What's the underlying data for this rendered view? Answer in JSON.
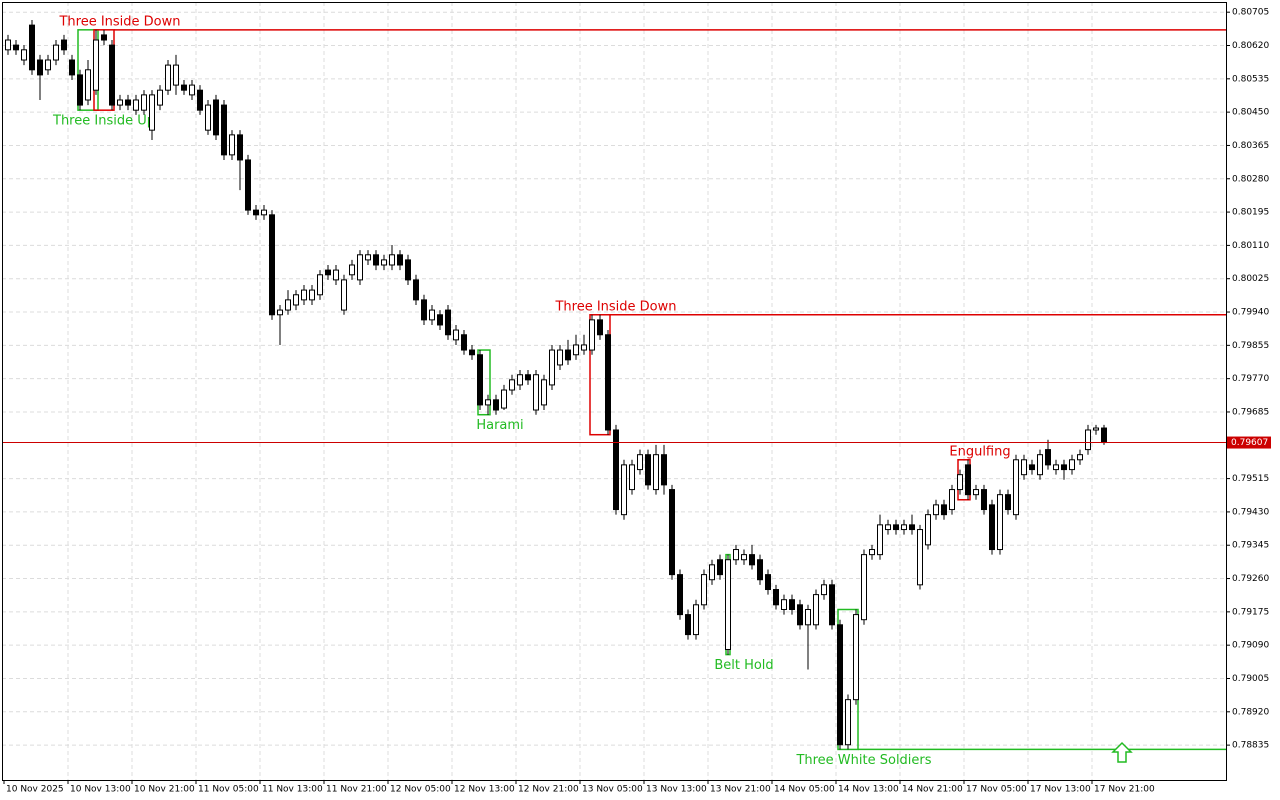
{
  "chart_data": {
    "type": "candlestick",
    "ylim": [
      0.78746,
      0.80731
    ],
    "yticks": [
      0.80705,
      {
        "value": 0.8062,
        "label": "0.80620"
      },
      0.80535,
      {
        "value": 0.8045,
        "label": "0.80450"
      },
      0.80365,
      {
        "value": 0.8028,
        "label": "0.80280"
      },
      0.80195,
      {
        "value": 0.8011,
        "label": "0.80110"
      },
      0.80025,
      {
        "value": 0.7994,
        "label": "0.79940"
      },
      0.79855,
      {
        "value": 0.7977,
        "label": "0.79770"
      },
      0.79685,
      0.79515,
      {
        "value": 0.7943,
        "label": "0.79430"
      },
      0.79345,
      {
        "value": 0.7926,
        "label": "0.79260"
      },
      0.79175,
      {
        "value": 0.7909,
        "label": "0.79090"
      },
      0.79005,
      {
        "value": 0.7892,
        "label": "0.78920"
      },
      0.78835
    ],
    "grid": true,
    "current_price": 0.79607,
    "colors": {
      "bear": "#000000",
      "bull": "#ffffff",
      "bearish_pattern": "#dd0000",
      "bullish_pattern": "#22bb22",
      "current": "#cc0000"
    },
    "categories": [
      "10 Nov 2025",
      null,
      null,
      null,
      null,
      null,
      null,
      null,
      "10 Nov 13:00",
      null,
      null,
      null,
      null,
      null,
      null,
      null,
      "10 Nov 21:00",
      null,
      null,
      null,
      null,
      null,
      null,
      null,
      "11 Nov 05:00",
      null,
      null,
      null,
      null,
      null,
      null,
      null,
      "11 Nov 13:00",
      null,
      null,
      null,
      null,
      null,
      null,
      null,
      "11 Nov 21:00",
      null,
      null,
      null,
      null,
      null,
      null,
      null,
      "12 Nov 05:00",
      null,
      null,
      null,
      null,
      null,
      null,
      null,
      "12 Nov 13:00",
      null,
      null,
      null,
      null,
      null,
      null,
      null,
      "12 Nov 21:00",
      null,
      null,
      null,
      null,
      null,
      null,
      null,
      "13 Nov 05:00",
      null,
      null,
      null,
      null,
      null,
      null,
      null,
      "13 Nov 13:00",
      null,
      null,
      null,
      null,
      null,
      null,
      null,
      "13 Nov 21:00",
      null,
      null,
      null,
      null,
      null,
      null,
      null,
      "14 Nov 05:00",
      null,
      null,
      null,
      null,
      null,
      null,
      null,
      "14 Nov 13:00",
      null,
      null,
      null,
      null,
      null,
      null,
      null,
      "14 Nov 21:00",
      null,
      null,
      null,
      null,
      null,
      null,
      null,
      "17 Nov 05:00",
      null,
      null,
      null,
      null,
      null,
      null,
      null,
      "17 Nov 13:00",
      null,
      null,
      null,
      null,
      null,
      null,
      null,
      "17 Nov 21:00",
      null
    ],
    "candles": [
      [
        0.80609,
        0.80647,
        0.80596,
        0.80634
      ],
      [
        0.80621,
        0.80634,
        0.80596,
        0.80609
      ],
      [
        0.80583,
        0.80621,
        0.8057,
        0.80609
      ],
      [
        0.80672,
        0.80685,
        0.80545,
        0.80558
      ],
      [
        0.80583,
        0.80596,
        0.80481,
        0.80545
      ],
      [
        0.80558,
        0.80596,
        0.80545,
        0.80583
      ],
      [
        0.80583,
        0.80634,
        0.8057,
        0.80621
      ],
      [
        0.80634,
        0.80647,
        0.80596,
        0.80609
      ],
      [
        0.80583,
        0.80596,
        0.80532,
        0.80545
      ],
      [
        0.80545,
        0.80558,
        0.80455,
        0.80468
      ],
      [
        0.80481,
        0.80583,
        0.80468,
        0.80558
      ],
      [
        0.80506,
        0.8066,
        0.80494,
        0.80634
      ],
      [
        0.80647,
        0.8066,
        0.80621,
        0.80634
      ],
      [
        0.80621,
        0.80634,
        0.80455,
        0.80468
      ],
      [
        0.80468,
        0.80494,
        0.80455,
        0.80481
      ],
      [
        0.80481,
        0.80494,
        0.80455,
        0.80468
      ],
      [
        0.80455,
        0.80494,
        0.80443,
        0.80481
      ],
      [
        0.80455,
        0.80506,
        0.80443,
        0.80494
      ],
      [
        0.80404,
        0.80506,
        0.80379,
        0.80494
      ],
      [
        0.80468,
        0.80519,
        0.80455,
        0.80506
      ],
      [
        0.80506,
        0.80583,
        0.80494,
        0.8057
      ],
      [
        0.80519,
        0.80596,
        0.80494,
        0.8057
      ],
      [
        0.80519,
        0.80532,
        0.80494,
        0.80506
      ],
      [
        0.80494,
        0.80532,
        0.80481,
        0.80519
      ],
      [
        0.80506,
        0.80519,
        0.80443,
        0.80455
      ],
      [
        0.80404,
        0.80481,
        0.80392,
        0.80468
      ],
      [
        0.80481,
        0.80494,
        0.80379,
        0.80392
      ],
      [
        0.80468,
        0.80481,
        0.80328,
        0.80341
      ],
      [
        0.80341,
        0.80404,
        0.80328,
        0.80392
      ],
      [
        0.80392,
        0.80404,
        0.80251,
        0.80328
      ],
      [
        0.80328,
        0.80341,
        0.80188,
        0.802
      ],
      [
        0.802,
        0.80213,
        0.80175,
        0.80188
      ],
      [
        0.80188,
        0.80213,
        0.80175,
        0.802
      ],
      [
        0.80188,
        0.802,
        0.7992,
        0.79933
      ],
      [
        0.79933,
        0.79958,
        0.79856,
        0.79945
      ],
      [
        0.79945,
        0.79996,
        0.79933,
        0.79971
      ],
      [
        0.79958,
        0.79996,
        0.79945,
        0.79984
      ],
      [
        0.79971,
        0.80009,
        0.79958,
        0.79996
      ],
      [
        0.79971,
        0.80009,
        0.79958,
        0.79996
      ],
      [
        0.79984,
        0.80047,
        0.79971,
        0.80035
      ],
      [
        0.80047,
        0.8006,
        0.80022,
        0.80035
      ],
      [
        0.80022,
        0.8006,
        0.80009,
        0.80047
      ],
      [
        0.79945,
        0.80035,
        0.79933,
        0.80022
      ],
      [
        0.80035,
        0.80073,
        0.80022,
        0.8006
      ],
      [
        0.80022,
        0.80098,
        0.80009,
        0.80086
      ],
      [
        0.80073,
        0.80098,
        0.8006,
        0.80086
      ],
      [
        0.80086,
        0.80098,
        0.80047,
        0.8006
      ],
      [
        0.8006,
        0.80086,
        0.80047,
        0.80073
      ],
      [
        0.8006,
        0.80111,
        0.80047,
        0.80086
      ],
      [
        0.80086,
        0.80098,
        0.80047,
        0.8006
      ],
      [
        0.80073,
        0.80086,
        0.80009,
        0.80022
      ],
      [
        0.80022,
        0.80035,
        0.79958,
        0.79971
      ],
      [
        0.79971,
        0.79984,
        0.79907,
        0.7992
      ],
      [
        0.7992,
        0.79958,
        0.79907,
        0.79945
      ],
      [
        0.79933,
        0.79945,
        0.79894,
        0.79907
      ],
      [
        0.79945,
        0.79958,
        0.79869,
        0.79882
      ],
      [
        0.79869,
        0.79907,
        0.79856,
        0.79894
      ],
      [
        0.79882,
        0.79894,
        0.79831,
        0.79843
      ],
      [
        0.79843,
        0.79856,
        0.79818,
        0.79831
      ],
      [
        0.79831,
        0.79843,
        0.7969,
        0.79703
      ],
      [
        0.79703,
        0.79729,
        0.79678,
        0.79716
      ],
      [
        0.79716,
        0.79729,
        0.79678,
        0.7969
      ],
      [
        0.79695,
        0.79754,
        0.7969,
        0.79741
      ],
      [
        0.79741,
        0.7978,
        0.79729,
        0.79767
      ],
      [
        0.79754,
        0.79792,
        0.79741,
        0.7978
      ],
      [
        0.7978,
        0.79792,
        0.79754,
        0.79767
      ],
      [
        0.7969,
        0.79792,
        0.79678,
        0.7978
      ],
      [
        0.79703,
        0.7978,
        0.7969,
        0.79767
      ],
      [
        0.79754,
        0.79856,
        0.79741,
        0.79843
      ],
      [
        0.79805,
        0.79856,
        0.79792,
        0.79843
      ],
      [
        0.79843,
        0.79869,
        0.79805,
        0.79818
      ],
      [
        0.79831,
        0.79882,
        0.79818,
        0.79856
      ],
      [
        0.79843,
        0.79882,
        0.79831,
        0.79856
      ],
      [
        0.79843,
        0.79933,
        0.79831,
        0.7992
      ],
      [
        0.7992,
        0.79933,
        0.79869,
        0.79882
      ],
      [
        0.79882,
        0.79894,
        0.79627,
        0.79639
      ],
      [
        0.79639,
        0.79652,
        0.79423,
        0.79436
      ],
      [
        0.79423,
        0.79563,
        0.7941,
        0.7955
      ],
      [
        0.79487,
        0.79563,
        0.79474,
        0.7955
      ],
      [
        0.79538,
        0.79589,
        0.79525,
        0.79576
      ],
      [
        0.79576,
        0.79589,
        0.79487,
        0.79499
      ],
      [
        0.79487,
        0.79601,
        0.79474,
        0.79576
      ],
      [
        0.79576,
        0.79601,
        0.79474,
        0.79499
      ],
      [
        0.79487,
        0.79499,
        0.79257,
        0.7927
      ],
      [
        0.7927,
        0.79283,
        0.79155,
        0.79168
      ],
      [
        0.79168,
        0.79181,
        0.79104,
        0.79117
      ],
      [
        0.79117,
        0.79206,
        0.79104,
        0.79193
      ],
      [
        0.79193,
        0.79283,
        0.79181,
        0.7927
      ],
      [
        0.79257,
        0.79308,
        0.79244,
        0.79295
      ],
      [
        0.79308,
        0.79321,
        0.79257,
        0.7927
      ],
      [
        0.79079,
        0.79321,
        0.79066,
        0.79308
      ],
      [
        0.79308,
        0.79346,
        0.79295,
        0.79334
      ],
      [
        0.79308,
        0.79334,
        0.79295,
        0.79321
      ],
      [
        0.79321,
        0.79346,
        0.79283,
        0.79295
      ],
      [
        0.79308,
        0.79321,
        0.79244,
        0.79257
      ],
      [
        0.7927,
        0.79283,
        0.79219,
        0.79232
      ],
      [
        0.79232,
        0.79244,
        0.79181,
        0.79193
      ],
      [
        0.79181,
        0.79219,
        0.79168,
        0.79206
      ],
      [
        0.79206,
        0.79219,
        0.79168,
        0.79181
      ],
      [
        0.79193,
        0.79206,
        0.7913,
        0.79142
      ],
      [
        0.79142,
        0.79193,
        0.79028,
        0.79181
      ],
      [
        0.79142,
        0.79232,
        0.7913,
        0.79219
      ],
      [
        0.79219,
        0.79257,
        0.79206,
        0.79244
      ],
      [
        0.79244,
        0.79257,
        0.7913,
        0.79142
      ],
      [
        0.79142,
        0.79155,
        0.78824,
        0.78836
      ],
      [
        0.78836,
        0.78964,
        0.78824,
        0.78951
      ],
      [
        0.78951,
        0.79181,
        0.78938,
        0.79168
      ],
      [
        0.79155,
        0.79334,
        0.79142,
        0.79321
      ],
      [
        0.79321,
        0.79346,
        0.79308,
        0.79334
      ],
      [
        0.79321,
        0.79423,
        0.79308,
        0.79397
      ],
      [
        0.79385,
        0.7941,
        0.79372,
        0.79397
      ],
      [
        0.79397,
        0.7941,
        0.79372,
        0.79385
      ],
      [
        0.79385,
        0.7941,
        0.79372,
        0.79397
      ],
      [
        0.79397,
        0.79423,
        0.79372,
        0.79385
      ],
      [
        0.79244,
        0.79397,
        0.79232,
        0.79385
      ],
      [
        0.79346,
        0.79436,
        0.79334,
        0.79423
      ],
      [
        0.79423,
        0.79461,
        0.7941,
        0.79448
      ],
      [
        0.79448,
        0.79461,
        0.7941,
        0.79423
      ],
      [
        0.79436,
        0.79499,
        0.79423,
        0.79487
      ],
      [
        0.79487,
        0.79538,
        0.79474,
        0.79525
      ],
      [
        0.7955,
        0.79563,
        0.79461,
        0.79474
      ],
      [
        0.79474,
        0.79499,
        0.79461,
        0.79487
      ],
      [
        0.79487,
        0.79499,
        0.79423,
        0.79436
      ],
      [
        0.79448,
        0.79461,
        0.79321,
        0.79334
      ],
      [
        0.79334,
        0.79487,
        0.79321,
        0.79474
      ],
      [
        0.79474,
        0.79487,
        0.79423,
        0.79436
      ],
      [
        0.79423,
        0.79576,
        0.7941,
        0.79563
      ],
      [
        0.79525,
        0.79576,
        0.79512,
        0.79563
      ],
      [
        0.7955,
        0.79563,
        0.79525,
        0.79538
      ],
      [
        0.79525,
        0.79589,
        0.79512,
        0.79576
      ],
      [
        0.79589,
        0.79614,
        0.79538,
        0.7955
      ],
      [
        0.79538,
        0.79563,
        0.79525,
        0.7955
      ],
      [
        0.7955,
        0.79563,
        0.79512,
        0.79538
      ],
      [
        0.79538,
        0.79576,
        0.79525,
        0.79563
      ],
      [
        0.79563,
        0.79589,
        0.7955,
        0.79576
      ],
      [
        0.79589,
        0.79652,
        0.79576,
        0.79639
      ],
      [
        0.79639,
        0.79652,
        0.79627,
        0.79644
      ],
      [
        0.79644,
        0.79652,
        0.79601,
        0.79607
      ]
    ],
    "patterns": [
      {
        "label": "Three Inside Up",
        "kind": "bullish",
        "candles": [
          9,
          11
        ],
        "extend": false
      },
      {
        "label": "Three Inside Down",
        "kind": "bearish",
        "candles": [
          11,
          13
        ],
        "extend": true
      },
      {
        "label": "Harami",
        "kind": "bullish",
        "candles": [
          59,
          60
        ],
        "extend": false
      },
      {
        "label": "Three Inside Down",
        "kind": "bearish",
        "candles": [
          73,
          75
        ],
        "extend": true
      },
      {
        "label": "Belt Hold",
        "kind": "bullish",
        "candles": [
          90,
          90
        ],
        "extend": false
      },
      {
        "label": "Three White Soldiers",
        "kind": "bullish",
        "candles": [
          104,
          106
        ],
        "extend": true
      },
      {
        "label": "Engulfing",
        "kind": "bearish",
        "candles": [
          119,
          120
        ],
        "extend": false
      }
    ]
  }
}
